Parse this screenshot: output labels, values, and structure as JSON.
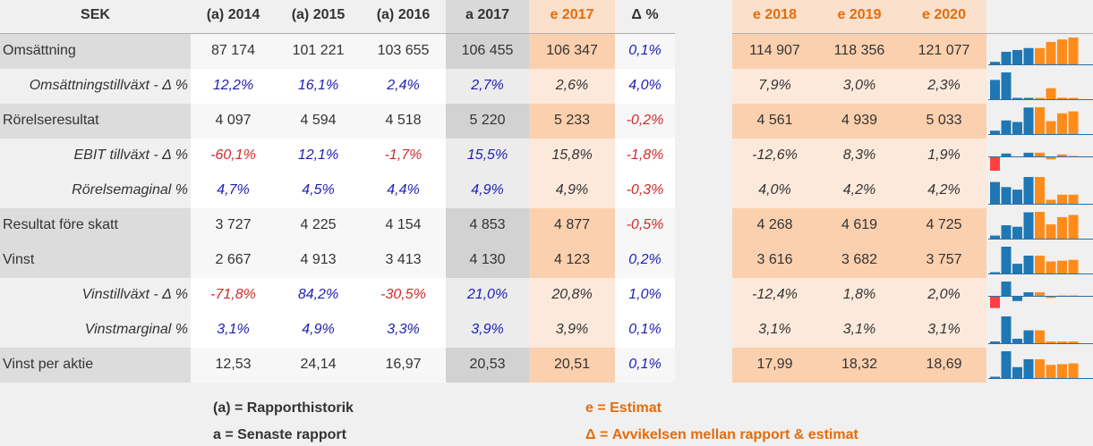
{
  "headers": {
    "label": "SEK",
    "h2014": "(a) 2014",
    "h2015": "(a) 2015",
    "h2016": "(a) 2016",
    "h2017a": "a 2017",
    "h2017e": "e 2017",
    "delta": "Δ %",
    "h2018": "e 2018",
    "h2019": "e 2019",
    "h2020": "e 2020"
  },
  "rows": [
    {
      "label": "Omsättning",
      "kind": "main",
      "values": [
        "87 174",
        "101 221",
        "103 655",
        "106 455",
        "106 347",
        "0,1%",
        "114 907",
        "118 356",
        "121 077"
      ],
      "spark": [
        87174,
        101221,
        103655,
        106455,
        106347,
        114907,
        118356,
        121077
      ]
    },
    {
      "label": "Omsättningstillväxt - Δ %",
      "kind": "sub",
      "values": [
        "12,2%",
        "16,1%",
        "2,4%",
        "2,7%",
        "2,6%",
        "4,0%",
        "7,9%",
        "3,0%",
        "2,3%"
      ],
      "spark": [
        12.2,
        16.1,
        2.4,
        2.7,
        2.6,
        7.9,
        3.0,
        2.3
      ]
    },
    {
      "label": "Rörelseresultat",
      "kind": "main",
      "values": [
        "4 097",
        "4 594",
        "4 518",
        "5 220",
        "5 233",
        "-0,2%",
        "4 561",
        "4 939",
        "5 033"
      ],
      "spark": [
        4097,
        4594,
        4518,
        5220,
        5233,
        4561,
        4939,
        5033
      ]
    },
    {
      "label": "EBIT tillväxt - Δ %",
      "kind": "sub",
      "values": [
        "-60,1%",
        "12,1%",
        "-1,7%",
        "15,5%",
        "15,8%",
        "-1,8%",
        "-12,6%",
        "8,3%",
        "1,9%"
      ],
      "spark": [
        -60.1,
        12.1,
        -1.7,
        15.5,
        15.8,
        -12.6,
        8.3,
        1.9
      ]
    },
    {
      "label": "Rörelsemaginal %",
      "kind": "sub",
      "values": [
        "4,7%",
        "4,5%",
        "4,4%",
        "4,9%",
        "4,9%",
        "-0,3%",
        "4,0%",
        "4,2%",
        "4,2%"
      ],
      "spark": [
        4.7,
        4.5,
        4.4,
        4.9,
        4.9,
        4.0,
        4.2,
        4.2
      ]
    },
    {
      "label": "Resultat före skatt",
      "kind": "main",
      "values": [
        "3 727",
        "4 225",
        "4 154",
        "4 853",
        "4 877",
        "-0,5%",
        "4 268",
        "4 619",
        "4 725"
      ],
      "spark": [
        3727,
        4225,
        4154,
        4853,
        4877,
        4268,
        4619,
        4725
      ]
    },
    {
      "label": "Vinst",
      "kind": "main",
      "values": [
        "2 667",
        "4 913",
        "3 413",
        "4 130",
        "4 123",
        "0,2%",
        "3 616",
        "3 682",
        "3 757"
      ],
      "spark": [
        2667,
        4913,
        3413,
        4130,
        4123,
        3616,
        3682,
        3757
      ]
    },
    {
      "label": "Vinstillväxt - Δ %",
      "kind": "sub",
      "values": [
        "-71,8%",
        "84,2%",
        "-30,5%",
        "21,0%",
        "20,8%",
        "1,0%",
        "-12,4%",
        "1,8%",
        "2,0%"
      ],
      "spark": [
        -71.8,
        84.2,
        -30.5,
        21.0,
        20.8,
        -12.4,
        1.8,
        2.0
      ]
    },
    {
      "label": "Vinstmarginal %",
      "kind": "sub",
      "values": [
        "3,1%",
        "4,9%",
        "3,3%",
        "3,9%",
        "3,9%",
        "0,1%",
        "3,1%",
        "3,1%",
        "3,1%"
      ],
      "spark": [
        3.1,
        4.9,
        3.3,
        3.9,
        3.9,
        3.1,
        3.1,
        3.1
      ]
    },
    {
      "label": "Vinst per aktie",
      "kind": "main",
      "values": [
        "12,53",
        "24,14",
        "16,97",
        "20,53",
        "20,51",
        "0,1%",
        "17,99",
        "18,32",
        "18,69"
      ],
      "spark": [
        12.53,
        24.14,
        16.97,
        20.53,
        20.51,
        17.99,
        18.32,
        18.69
      ]
    }
  ],
  "legend": {
    "a_hist": "(a) = Rapporthistorik",
    "a_latest": "a = Senaste rapport",
    "e": "e = Estimat",
    "delta": "Δ = Avvikelsen mellan rapport & estimat"
  },
  "colors": {
    "history_bar": "#1f77b4",
    "estimate_bar": "#ff8c1a",
    "negative_bar": "#ff4040",
    "positive_text": "#1f1fb3",
    "negative_text": "#d12a2a",
    "estimate_header": "#e46c0a"
  }
}
